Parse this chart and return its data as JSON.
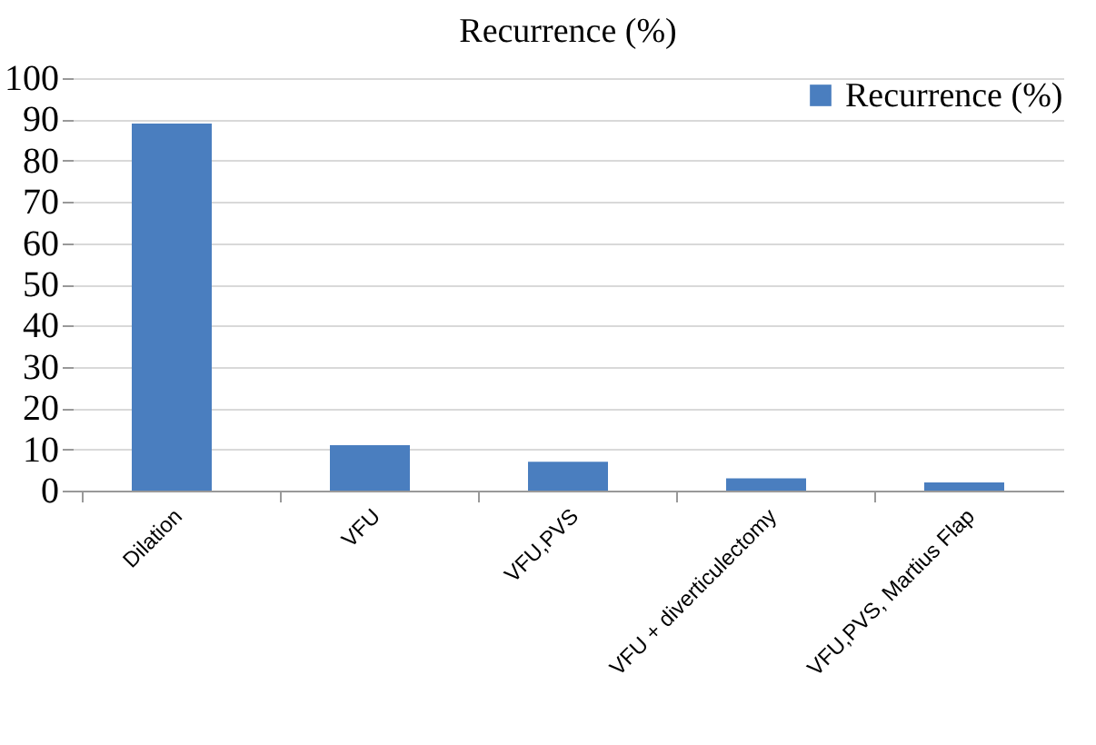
{
  "chart_data": {
    "type": "bar",
    "title": "Recurrence (%)",
    "categories": [
      "Dilation",
      "VFU",
      "VFU,PVS",
      "VFU + diverticulectomy",
      "VFU,PVS, Martius Flap"
    ],
    "series": [
      {
        "name": "Recurrence (%)",
        "color": "#4a7ebf",
        "values": [
          89,
          11,
          7,
          3,
          2
        ]
      }
    ],
    "ylim": [
      0,
      100
    ],
    "yticks": [
      0,
      10,
      20,
      30,
      40,
      50,
      60,
      70,
      80,
      90,
      100
    ],
    "grid": "y",
    "legend": "top right"
  }
}
